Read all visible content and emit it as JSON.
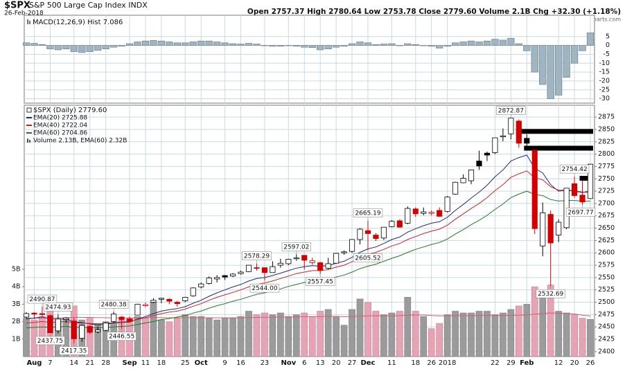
{
  "chart_data": {
    "type": "candlestick",
    "header": {
      "symbol": "$SPX",
      "name": "S&P 500 Large Cap Index INDX",
      "date": "26-Feb-2018",
      "quote": "Open 2757.37  High 2780.64  Low 2753.78  Close 2779.60  Volume 2.1B  Chg +32.30 (+1.18%)",
      "watermark": "@StockCharts.com"
    },
    "legend_title": "$SPX (Daily) 2779.60",
    "categories": [
      null,
      "Aug",
      null,
      "7",
      null,
      null,
      "14",
      null,
      "21",
      null,
      "28",
      null,
      null,
      "Sep",
      null,
      "11",
      null,
      "18",
      null,
      null,
      "25",
      null,
      "Oct",
      null,
      null,
      "9",
      null,
      "16",
      null,
      null,
      "23",
      null,
      null,
      "Nov",
      null,
      "6",
      null,
      "13",
      null,
      "20",
      null,
      "27",
      null,
      "Dec",
      null,
      null,
      "11",
      null,
      null,
      "18",
      null,
      "26",
      null,
      "2018",
      null,
      null,
      null,
      null,
      null,
      "22",
      null,
      "29",
      null,
      "Feb",
      null,
      null,
      null,
      "12",
      null,
      "20",
      null,
      "26"
    ],
    "open": [
      2470,
      2478,
      2477,
      2473,
      2442,
      2465,
      2462,
      2427,
      2451,
      2440,
      2443,
      2461,
      2470,
      2466,
      2474,
      2493,
      2500,
      2506,
      2506,
      2500,
      2503,
      2513,
      2531,
      2538,
      2547,
      2554,
      2553,
      2558,
      2562,
      2570,
      2570,
      2560,
      2575,
      2578,
      2588,
      2595,
      2580,
      2580,
      2569,
      2579,
      2600,
      2603,
      2627,
      2645,
      2636,
      2630,
      2653,
      2665,
      2660,
      2689,
      2680,
      2680,
      2686,
      2684,
      2719,
      2742,
      2746,
      2786,
      2802,
      2803,
      2835,
      2841,
      2867,
      2832,
      2808,
      2614,
      2678,
      2636,
      2651,
      2740,
      2717,
      2710
    ],
    "high": [
      2480,
      2480,
      2490.87,
      2475,
      2474.93,
      2470,
      2468,
      2455,
      2454,
      2451,
      2460,
      2480.38,
      2472,
      2471,
      2497,
      2499,
      2508,
      2509,
      2508,
      2503,
      2511,
      2530,
      2540,
      2552,
      2555,
      2555,
      2559,
      2564,
      2575,
      2578.29,
      2570,
      2583,
      2588,
      2588,
      2597.02,
      2595,
      2590,
      2582,
      2590,
      2600,
      2605,
      2628,
      2650,
      2665.19,
      2640,
      2652,
      2666,
      2668,
      2694,
      2692,
      2692,
      2686,
      2692,
      2715,
      2744,
      2759,
      2768,
      2807,
      2805,
      2833,
      2852,
      2872.87,
      2870,
      2840,
      2808,
      2702,
      2686,
      2668,
      2731,
      2754.42,
      2747,
      2780.64
    ],
    "low": [
      2467,
      2466,
      2470,
      2437.75,
      2437,
      2458,
      2417.35,
      2420,
      2435,
      2437,
      2441,
      2458,
      2446.55,
      2458,
      2474,
      2490,
      2498,
      2498,
      2496,
      2491,
      2500,
      2511,
      2528,
      2536,
      2540,
      2545,
      2551,
      2556,
      2561,
      2564,
      2544,
      2560,
      2570,
      2575,
      2584,
      2566,
      2576,
      2557.45,
      2567,
      2578,
      2596,
      2600,
      2617,
      2605.52,
      2624,
      2626,
      2652,
      2651,
      2658,
      2673,
      2676,
      2676,
      2673,
      2682,
      2718,
      2741,
      2739,
      2768,
      2786,
      2800,
      2826,
      2830,
      2813,
      2808,
      2638,
      2593,
      2532.69,
      2622,
      2648,
      2712,
      2697.77,
      2709
    ],
    "close": [
      2477,
      2476,
      2475,
      2438,
      2466,
      2468,
      2426,
      2453,
      2439,
      2444,
      2458,
      2476,
      2465,
      2461,
      2496,
      2495,
      2504,
      2508,
      2502,
      2497,
      2510,
      2529,
      2537,
      2549,
      2550,
      2551,
      2557,
      2561,
      2575,
      2569,
      2560,
      2572,
      2579,
      2587,
      2590,
      2585,
      2584,
      2565,
      2578,
      2599,
      2602,
      2627,
      2648,
      2639,
      2629,
      2652,
      2664,
      2652,
      2690,
      2679,
      2683,
      2682,
      2674,
      2713,
      2743,
      2751,
      2768,
      2776,
      2798,
      2833,
      2837,
      2872.87,
      2822,
      2822,
      2649,
      2681,
      2620,
      2662,
      2731,
      2716,
      2703,
      2779.6
    ],
    "high_labels": [
      null,
      null,
      "2490.87",
      null,
      "2474.93",
      null,
      null,
      null,
      null,
      null,
      null,
      "2480.38",
      null,
      null,
      null,
      null,
      null,
      null,
      null,
      null,
      null,
      null,
      null,
      null,
      null,
      null,
      null,
      null,
      null,
      "2578.29",
      null,
      null,
      null,
      null,
      "2597.02",
      null,
      null,
      null,
      null,
      null,
      null,
      null,
      null,
      "2665.19",
      null,
      null,
      null,
      null,
      null,
      null,
      null,
      null,
      null,
      null,
      null,
      null,
      null,
      null,
      null,
      null,
      null,
      "2872.87",
      null,
      null,
      null,
      null,
      null,
      null,
      null,
      "2754.42",
      null,
      null
    ],
    "low_labels": [
      null,
      null,
      null,
      "2437.75",
      null,
      null,
      "2417.35",
      null,
      null,
      null,
      null,
      null,
      "2446.55",
      null,
      null,
      null,
      null,
      null,
      null,
      null,
      null,
      null,
      null,
      null,
      null,
      null,
      null,
      null,
      null,
      null,
      "2544.00",
      null,
      null,
      null,
      null,
      null,
      null,
      "2557.45",
      null,
      null,
      null,
      null,
      null,
      "2605.52",
      null,
      null,
      null,
      null,
      null,
      null,
      null,
      null,
      null,
      null,
      null,
      null,
      null,
      null,
      null,
      null,
      null,
      null,
      null,
      null,
      null,
      null,
      "2532.69",
      null,
      null,
      null,
      "2697.77",
      null
    ],
    "ylim": [
      2390,
      2899
    ],
    "yticks": [
      2400,
      2425,
      2450,
      2475,
      2500,
      2525,
      2550,
      2575,
      2600,
      2625,
      2650,
      2675,
      2700,
      2725,
      2750,
      2775,
      2800,
      2825,
      2850,
      2875
    ],
    "grid": true,
    "series": [
      {
        "name": "EMA(20) 2725.88",
        "color": "#1c2a86",
        "values": [
          2466,
          2468,
          2470,
          2466,
          2466,
          2466,
          2460,
          2459,
          2456,
          2454,
          2455,
          2458,
          2459,
          2460,
          2466,
          2471,
          2477,
          2482,
          2485,
          2487,
          2491,
          2498,
          2504,
          2512,
          2519,
          2525,
          2531,
          2536,
          2543,
          2548,
          2550,
          2554,
          2559,
          2564,
          2569,
          2572,
          2574,
          2573,
          2574,
          2579,
          2583,
          2591,
          2601,
          2608,
          2612,
          2619,
          2627,
          2632,
          2642,
          2649,
          2655,
          2660,
          2663,
          2672,
          2686,
          2698,
          2711,
          2723,
          2737,
          2754,
          2768,
          2786,
          2793,
          2798,
          2771,
          2762,
          2738,
          2725,
          2727,
          2725,
          2722,
          2725.88
        ]
      },
      {
        "name": "EMA(40) 2722.04",
        "color": "#d42020",
        "values": [
          2458,
          2459,
          2461,
          2459,
          2460,
          2461,
          2458,
          2458,
          2457,
          2456,
          2457,
          2459,
          2460,
          2461,
          2465,
          2469,
          2473,
          2477,
          2480,
          2482,
          2486,
          2492,
          2497,
          2504,
          2510,
          2515,
          2520,
          2525,
          2531,
          2536,
          2539,
          2543,
          2548,
          2553,
          2558,
          2561,
          2564,
          2564,
          2566,
          2571,
          2575,
          2582,
          2591,
          2597,
          2601,
          2607,
          2614,
          2619,
          2627,
          2633,
          2639,
          2644,
          2648,
          2656,
          2668,
          2679,
          2690,
          2700,
          2712,
          2726,
          2738,
          2753,
          2760,
          2766,
          2752,
          2748,
          2734,
          2727,
          2727,
          2726,
          2723,
          2722.04
        ]
      },
      {
        "name": "EMA(60) 2704.86",
        "color": "#1f7a1f",
        "values": [
          2448,
          2449,
          2450,
          2449,
          2450,
          2451,
          2449,
          2449,
          2448,
          2448,
          2449,
          2450,
          2451,
          2452,
          2455,
          2458,
          2461,
          2465,
          2467,
          2470,
          2473,
          2478,
          2482,
          2488,
          2493,
          2497,
          2502,
          2506,
          2511,
          2516,
          2519,
          2523,
          2527,
          2532,
          2536,
          2540,
          2543,
          2544,
          2547,
          2551,
          2555,
          2561,
          2568,
          2573,
          2577,
          2583,
          2589,
          2594,
          2601,
          2607,
          2612,
          2617,
          2621,
          2628,
          2638,
          2647,
          2657,
          2666,
          2676,
          2688,
          2699,
          2712,
          2719,
          2725,
          2718,
          2716,
          2708,
          2705,
          2706,
          2706,
          2705,
          2704.86
        ]
      }
    ],
    "levels": [
      2846,
      2812,
      2751
    ],
    "volume": {
      "name": "Volume 2.13B, EMA(60) 2.32B",
      "up_color": "#9b9b9b",
      "down_color": "#e6a3b4",
      "ema_color": "#d06070",
      "values": [
        2.2,
        2.1,
        2.3,
        2.8,
        2.1,
        2.2,
        2.9,
        2.1,
        2.2,
        1.9,
        2.0,
        1.9,
        2.1,
        2.2,
        2.3,
        2.2,
        3.1,
        2.1,
        2.0,
        2.2,
        2.4,
        2.3,
        2.3,
        2.2,
        2.1,
        2.2,
        2.2,
        2.3,
        2.6,
        2.4,
        2.5,
        2.4,
        2.5,
        2.3,
        2.4,
        2.5,
        2.3,
        2.6,
        2.7,
        2.3,
        1.8,
        2.7,
        3.3,
        3.1,
        2.6,
        2.4,
        2.5,
        2.6,
        3.4,
        2.6,
        2.3,
        1.6,
        1.9,
        2.4,
        2.6,
        2.5,
        2.5,
        2.6,
        2.6,
        2.4,
        2.5,
        2.7,
        2.9,
        3.0,
        4.0,
        3.5,
        4.1,
        2.6,
        2.5,
        2.4,
        2.2,
        2.13
      ],
      "ema_values": [
        2.2,
        2.2,
        2.2,
        2.22,
        2.22,
        2.22,
        2.25,
        2.24,
        2.24,
        2.23,
        2.22,
        2.21,
        2.21,
        2.21,
        2.21,
        2.21,
        2.24,
        2.23,
        2.22,
        2.22,
        2.22,
        2.22,
        2.22,
        2.22,
        2.22,
        2.22,
        2.22,
        2.22,
        2.23,
        2.24,
        2.25,
        2.25,
        2.26,
        2.26,
        2.27,
        2.28,
        2.28,
        2.29,
        2.3,
        2.3,
        2.28,
        2.29,
        2.31,
        2.33,
        2.33,
        2.33,
        2.33,
        2.34,
        2.37,
        2.38,
        2.38,
        2.35,
        2.33,
        2.33,
        2.34,
        2.34,
        2.34,
        2.35,
        2.35,
        2.35,
        2.35,
        2.36,
        2.37,
        2.38,
        2.43,
        2.46,
        2.5,
        2.49,
        2.47,
        2.44,
        2.37,
        2.32
      ],
      "ylim": [
        0,
        14.4
      ],
      "yticks": [
        {
          "value": 1,
          "label": "1B"
        },
        {
          "value": 2,
          "label": "2B"
        },
        {
          "value": 3,
          "label": "3B"
        },
        {
          "value": 4,
          "label": "4B"
        },
        {
          "value": 5,
          "label": "5B"
        }
      ]
    },
    "macd": {
      "title": "MACD(12,26,9) Hist 7.086",
      "color": "#9fb6c2",
      "values": [
        1.5,
        1.2,
        0.5,
        -2.0,
        -2.5,
        -2.0,
        -3.5,
        -4.0,
        -3.5,
        -2.8,
        -2.0,
        -1.0,
        -0.5,
        1.0,
        2.0,
        2.5,
        2.8,
        2.5,
        2.0,
        1.5,
        1.5,
        2.0,
        2.5,
        2.5,
        2.0,
        1.5,
        1.0,
        0.8,
        1.2,
        0.8,
        0.0,
        -0.5,
        -0.5,
        -0.2,
        -0.5,
        -1.0,
        -1.2,
        -2.5,
        -2.0,
        -1.0,
        -0.5,
        1.0,
        2.0,
        1.5,
        0.5,
        0.8,
        1.0,
        0.0,
        1.0,
        0.5,
        0.0,
        -0.5,
        -1.5,
        -0.5,
        1.5,
        2.0,
        2.5,
        2.0,
        2.5,
        3.5,
        3.0,
        4.0,
        1.0,
        -3.0,
        -15.0,
        -22.0,
        -30.0,
        -28.0,
        -18.0,
        -10.0,
        -3.0,
        7.086
      ],
      "ylim": [
        -32.5,
        17
      ],
      "yticks": [
        5,
        0,
        -5,
        -10,
        -15,
        -20,
        -25,
        -30
      ]
    }
  }
}
